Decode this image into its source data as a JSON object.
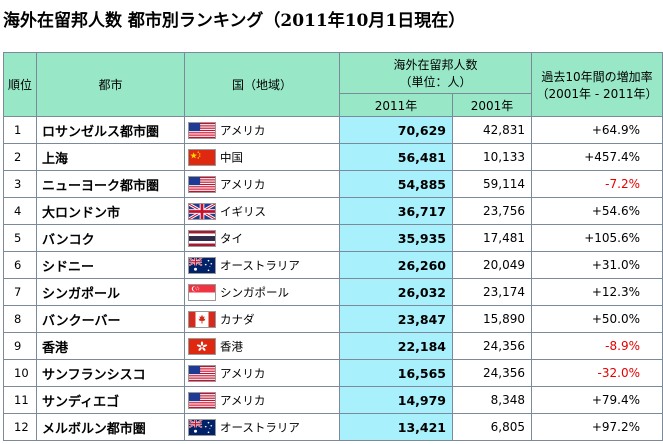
{
  "title": "海外在留邦人数 都市別ランキング（2011年10月1日現在）",
  "headers": {
    "rank": "順位",
    "city": "都市",
    "country": "国（地域）",
    "residents_line1": "海外在留邦人数",
    "residents_line2": "（単位：人）",
    "year_2011": "2011年",
    "year_2001": "2001年",
    "rate_line1": "過去10年間の増加率",
    "rate_line2": "（2001年 - 2011年）"
  },
  "rows": [
    {
      "rank": "1",
      "city": "ロサンゼルス都市圏",
      "flag": "us-flag-icon",
      "country": "アメリカ",
      "v2011": "70,629",
      "v2001": "42,831",
      "rate": "+64.9%",
      "negative": false
    },
    {
      "rank": "2",
      "city": "上海",
      "flag": "china-flag-icon",
      "country": "中国",
      "v2011": "56,481",
      "v2001": "10,133",
      "rate": "+457.4%",
      "negative": false
    },
    {
      "rank": "3",
      "city": "ニューヨーク都市圏",
      "flag": "us-flag-icon",
      "country": "アメリカ",
      "v2011": "54,885",
      "v2001": "59,114",
      "rate": "-7.2%",
      "negative": true
    },
    {
      "rank": "4",
      "city": "大ロンドン市",
      "flag": "uk-flag-icon",
      "country": "イギリス",
      "v2011": "36,717",
      "v2001": "23,756",
      "rate": "+54.6%",
      "negative": false
    },
    {
      "rank": "5",
      "city": "バンコク",
      "flag": "thailand-flag-icon",
      "country": "タイ",
      "v2011": "35,935",
      "v2001": "17,481",
      "rate": "+105.6%",
      "negative": false
    },
    {
      "rank": "6",
      "city": "シドニー",
      "flag": "australia-flag-icon",
      "country": "オーストラリア",
      "v2011": "26,260",
      "v2001": "20,049",
      "rate": "+31.0%",
      "negative": false
    },
    {
      "rank": "7",
      "city": "シンガポール",
      "flag": "singapore-flag-icon",
      "country": "シンガポール",
      "v2011": "26,032",
      "v2001": "23,174",
      "rate": "+12.3%",
      "negative": false
    },
    {
      "rank": "8",
      "city": "バンクーバー",
      "flag": "canada-flag-icon",
      "country": "カナダ",
      "v2011": "23,847",
      "v2001": "15,890",
      "rate": "+50.0%",
      "negative": false
    },
    {
      "rank": "9",
      "city": "香港",
      "flag": "hongkong-flag-icon",
      "country": "香港",
      "v2011": "22,184",
      "v2001": "24,356",
      "rate": "-8.9%",
      "negative": true
    },
    {
      "rank": "10",
      "city": "サンフランシスコ",
      "flag": "us-flag-icon",
      "country": "アメリカ",
      "v2011": "16,565",
      "v2001": "24,356",
      "rate": "-32.0%",
      "negative": true
    },
    {
      "rank": "11",
      "city": "サンディエゴ",
      "flag": "us-flag-icon",
      "country": "アメリカ",
      "v2011": "14,979",
      "v2001": "8,348",
      "rate": "+79.4%",
      "negative": false
    },
    {
      "rank": "12",
      "city": "メルボルン都市圏",
      "flag": "australia-flag-icon",
      "country": "オーストラリア",
      "v2011": "13,421",
      "v2001": "6,805",
      "rate": "+97.2%",
      "negative": false
    }
  ],
  "colors": {
    "header_bg": "#98e8c8",
    "highlight_col": "#a8f0fb",
    "negative": "#e60000",
    "border": "#7a8a9a"
  }
}
